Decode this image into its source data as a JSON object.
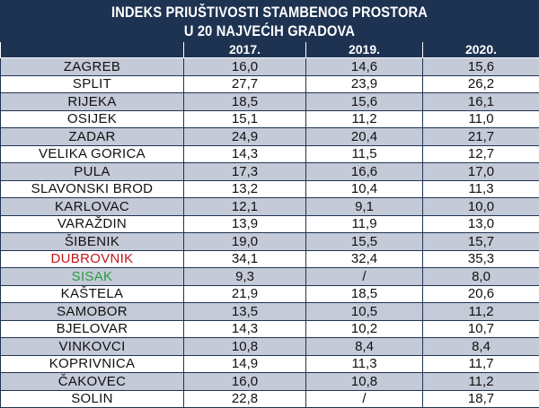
{
  "title": {
    "line1": "INDEKS PRIUŠTIVOSTI STAMBENOG PROSTORA",
    "line2": "U 20 NAJVEĆIH GRADOVA"
  },
  "columns": [
    "",
    "2017.",
    "2019.",
    "2020."
  ],
  "colors": {
    "header_bg": "#1e3352",
    "row_shade": "#c5cad8",
    "highlight_red": "#c4161c",
    "highlight_green": "#2b9a3e"
  },
  "rows": [
    {
      "city": "ZAGREB",
      "v2017": "16,0",
      "v2019": "14,6",
      "v2020": "15,6"
    },
    {
      "city": "SPLIT",
      "v2017": "27,7",
      "v2019": "23,9",
      "v2020": "26,2"
    },
    {
      "city": "RIJEKA",
      "v2017": "18,5",
      "v2019": "15,6",
      "v2020": "16,1"
    },
    {
      "city": "OSIJEK",
      "v2017": "15,1",
      "v2019": "11,2",
      "v2020": "11,0"
    },
    {
      "city": "ZADAR",
      "v2017": "24,9",
      "v2019": "20,4",
      "v2020": "21,7"
    },
    {
      "city": "VELIKA GORICA",
      "v2017": "14,3",
      "v2019": "11,5",
      "v2020": "12,7"
    },
    {
      "city": "PULA",
      "v2017": "17,3",
      "v2019": "16,6",
      "v2020": "17,0"
    },
    {
      "city": "SLAVONSKI BROD",
      "v2017": "13,2",
      "v2019": "10,4",
      "v2020": "11,3"
    },
    {
      "city": "KARLOVAC",
      "v2017": "12,1",
      "v2019": "9,1",
      "v2020": "10,0"
    },
    {
      "city": "VARAŽDIN",
      "v2017": "13,9",
      "v2019": "11,9",
      "v2020": "13,0"
    },
    {
      "city": "ŠIBENIK",
      "v2017": "19,0",
      "v2019": "15,5",
      "v2020": "15,7"
    },
    {
      "city": "DUBROVNIK",
      "v2017": "34,1",
      "v2019": "32,4",
      "v2020": "35,3"
    },
    {
      "city": "SISAK",
      "v2017": "9,3",
      "v2019": "/",
      "v2020": "8,0"
    },
    {
      "city": "KAŠTELA",
      "v2017": "21,9",
      "v2019": "18,5",
      "v2020": "20,6"
    },
    {
      "city": "SAMOBOR",
      "v2017": "13,5",
      "v2019": "10,5",
      "v2020": "11,2"
    },
    {
      "city": "BJELOVAR",
      "v2017": "14,3",
      "v2019": "10,2",
      "v2020": "10,7"
    },
    {
      "city": "VINKOVCI",
      "v2017": "10,8",
      "v2019": "8,4",
      "v2020": "8,4"
    },
    {
      "city": "KOPRIVNICA",
      "v2017": "14,9",
      "v2019": "11,3",
      "v2020": "11,7"
    },
    {
      "city": "ČAKOVEC",
      "v2017": "16,0",
      "v2019": "10,8",
      "v2020": "11,2"
    },
    {
      "city": "SOLIN",
      "v2017": "22,8",
      "v2019": "/",
      "v2020": "18,7"
    }
  ]
}
